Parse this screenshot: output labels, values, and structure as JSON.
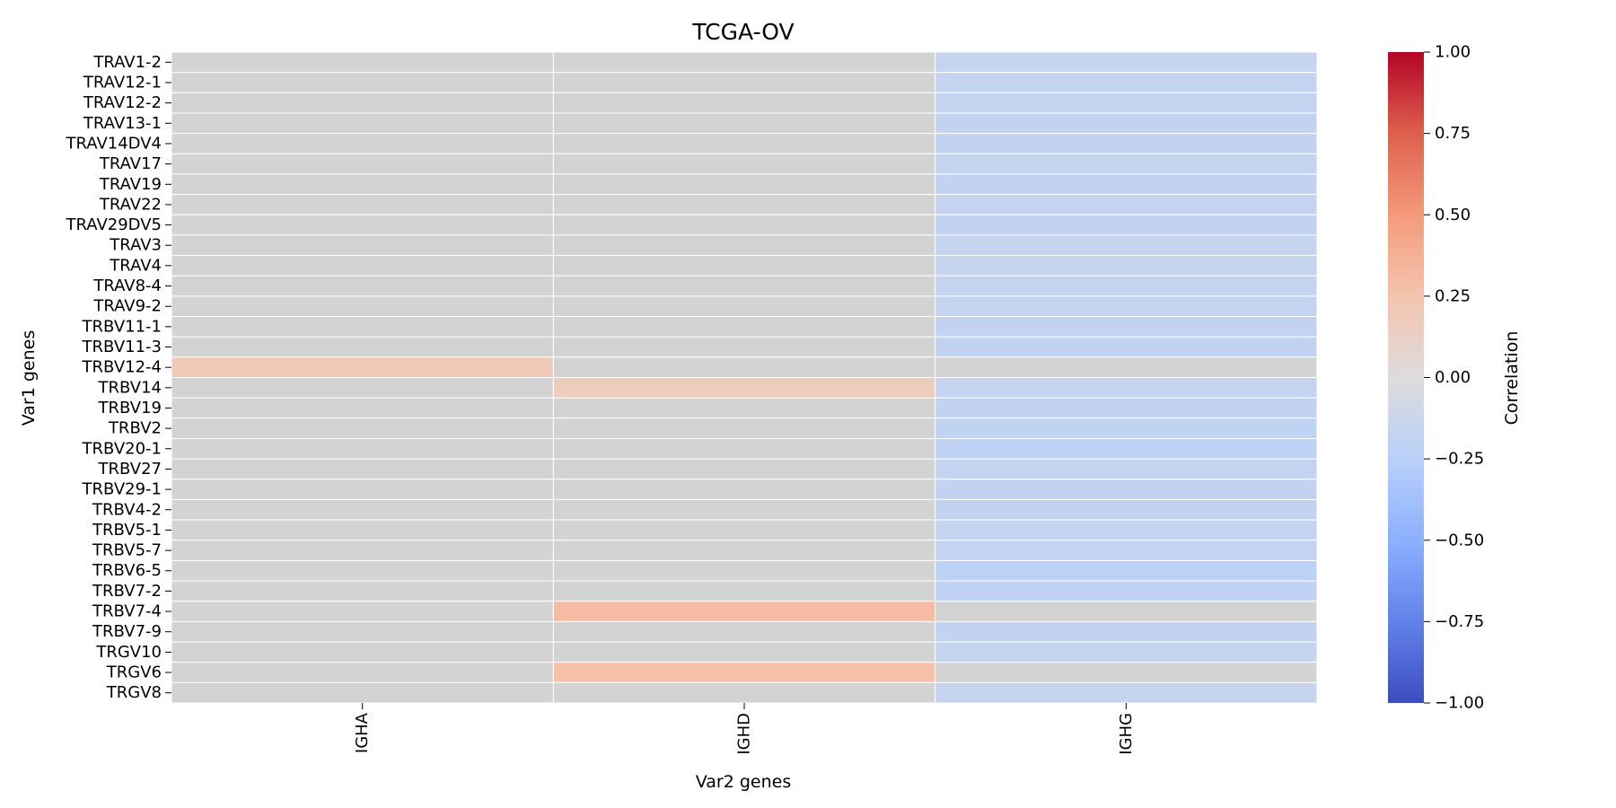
{
  "chart_data": {
    "type": "heatmap",
    "title": "TCGA-OV",
    "xlabel": "Var2 genes",
    "ylabel": "Var1 genes",
    "colorbar": {
      "label": "Correlation",
      "range": [
        -1.0,
        1.0
      ],
      "ticks": [
        "1.00",
        "0.75",
        "0.50",
        "0.25",
        "0.00",
        "−0.25",
        "−0.50",
        "−0.75",
        "−1.00"
      ],
      "tick_values": [
        1.0,
        0.75,
        0.5,
        0.25,
        0.0,
        -0.25,
        -0.5,
        -0.75,
        -1.0
      ],
      "colormap": "coolwarm"
    },
    "columns": [
      "IGHA",
      "IGHD",
      "IGHG"
    ],
    "rows": [
      "TRAV1-2",
      "TRAV12-1",
      "TRAV12-2",
      "TRAV13-1",
      "TRAV14DV4",
      "TRAV17",
      "TRAV19",
      "TRAV22",
      "TRAV29DV5",
      "TRAV3",
      "TRAV4",
      "TRAV8-4",
      "TRAV9-2",
      "TRBV11-1",
      "TRBV11-3",
      "TRBV12-4",
      "TRBV14",
      "TRBV19",
      "TRBV2",
      "TRBV20-1",
      "TRBV27",
      "TRBV29-1",
      "TRBV4-2",
      "TRBV5-1",
      "TRBV5-7",
      "TRBV6-5",
      "TRBV7-2",
      "TRBV7-4",
      "TRBV7-9",
      "TRGV10",
      "TRGV6",
      "TRGV8"
    ],
    "values": [
      [
        0,
        0,
        -0.16
      ],
      [
        0,
        0,
        -0.17
      ],
      [
        0,
        0,
        -0.17
      ],
      [
        0,
        0,
        -0.18
      ],
      [
        0,
        0,
        -0.18
      ],
      [
        0,
        0,
        -0.16
      ],
      [
        0,
        0,
        -0.18
      ],
      [
        0,
        0,
        -0.17
      ],
      [
        0,
        0,
        -0.18
      ],
      [
        0,
        0,
        -0.16
      ],
      [
        0,
        0,
        -0.16
      ],
      [
        0,
        0,
        -0.17
      ],
      [
        0,
        0,
        -0.17
      ],
      [
        0,
        0,
        -0.18
      ],
      [
        0,
        0,
        -0.18
      ],
      [
        0.2,
        0,
        0
      ],
      [
        0,
        0.17,
        -0.17
      ],
      [
        0,
        0,
        -0.18
      ],
      [
        0,
        0,
        -0.19
      ],
      [
        0,
        0,
        -0.21
      ],
      [
        0,
        0,
        -0.17
      ],
      [
        0,
        0,
        -0.18
      ],
      [
        0,
        0,
        -0.18
      ],
      [
        0,
        0,
        -0.17
      ],
      [
        0,
        0,
        -0.17
      ],
      [
        0,
        0,
        -0.22
      ],
      [
        0,
        0,
        -0.2
      ],
      [
        0,
        0.3,
        0
      ],
      [
        0,
        0,
        -0.18
      ],
      [
        0,
        0,
        -0.16
      ],
      [
        0,
        0.27,
        0
      ],
      [
        0,
        0,
        -0.16
      ]
    ]
  }
}
